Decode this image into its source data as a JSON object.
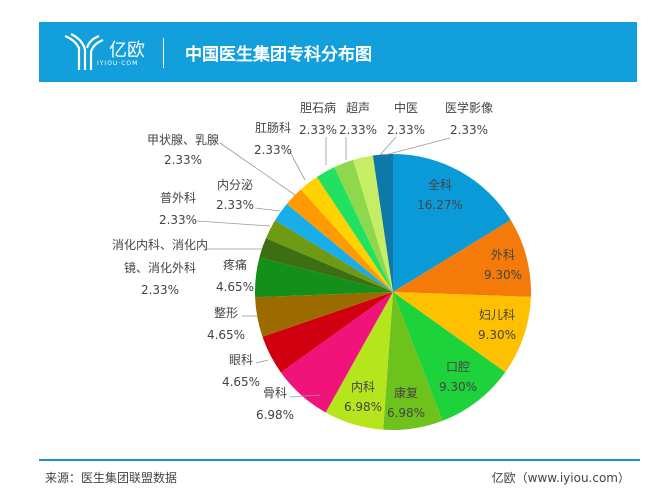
{
  "header": {
    "logo_text": "亿欧",
    "logo_sub": "IYIOU·COM",
    "title": "中国医生集团专科分布图"
  },
  "footer": {
    "source": "来源：医生集团联盟数据",
    "credit": "亿欧（www.iyiou.com）"
  },
  "chart_data": {
    "type": "pie",
    "title": "中国医生集团专科分布图",
    "start": "12 o'clock, clockwise",
    "slices": [
      {
        "label": "全科",
        "value": 16.27,
        "text": "16.27%",
        "color": "#0A9AD8"
      },
      {
        "label": "外科",
        "value": 9.3,
        "text": "9.30%",
        "color": "#F47B0A"
      },
      {
        "label": "妇儿科",
        "value": 9.3,
        "text": "9.30%",
        "color": "#FFC000"
      },
      {
        "label": "口腔",
        "value": 9.3,
        "text": "9.30%",
        "color": "#1ED23C"
      },
      {
        "label": "康复",
        "value": 6.98,
        "text": "6.98%",
        "color": "#6DC21B"
      },
      {
        "label": "内科",
        "value": 6.98,
        "text": "6.98%",
        "color": "#B5E61D"
      },
      {
        "label": "骨科",
        "value": 6.98,
        "text": "6.98%",
        "color": "#F0147A"
      },
      {
        "label": "眼科",
        "value": 4.65,
        "text": "4.65%",
        "color": "#D00010"
      },
      {
        "label": "整形",
        "value": 4.65,
        "text": "4.65%",
        "color": "#9C6B00"
      },
      {
        "label": "疼痛",
        "value": 4.65,
        "text": "4.65%",
        "color": "#148F1A"
      },
      {
        "label": "消化内科、消化内镜、消化外科",
        "value": 2.33,
        "text": "2.33%",
        "color": "#3C6E12"
      },
      {
        "label": "普外科",
        "value": 2.33,
        "text": "2.33%",
        "color": "#6E9A14"
      },
      {
        "label": "内分泌",
        "value": 2.33,
        "text": "2.33%",
        "color": "#18AEEA"
      },
      {
        "label": "甲状腺、乳腺",
        "value": 2.33,
        "text": "2.33%",
        "color": "#FF9A00"
      },
      {
        "label": "肛肠科",
        "value": 2.33,
        "text": "2.33%",
        "color": "#FFD200"
      },
      {
        "label": "胆石病",
        "value": 2.33,
        "text": "2.33%",
        "color": "#22E060"
      },
      {
        "label": "超声",
        "value": 2.33,
        "text": "2.33%",
        "color": "#8ED84E"
      },
      {
        "label": "中医",
        "value": 2.33,
        "text": "2.33%",
        "color": "#C6EE64"
      },
      {
        "label": "医学影像",
        "value": 2.33,
        "text": "2.33%",
        "color": "#0F78A8"
      }
    ]
  }
}
